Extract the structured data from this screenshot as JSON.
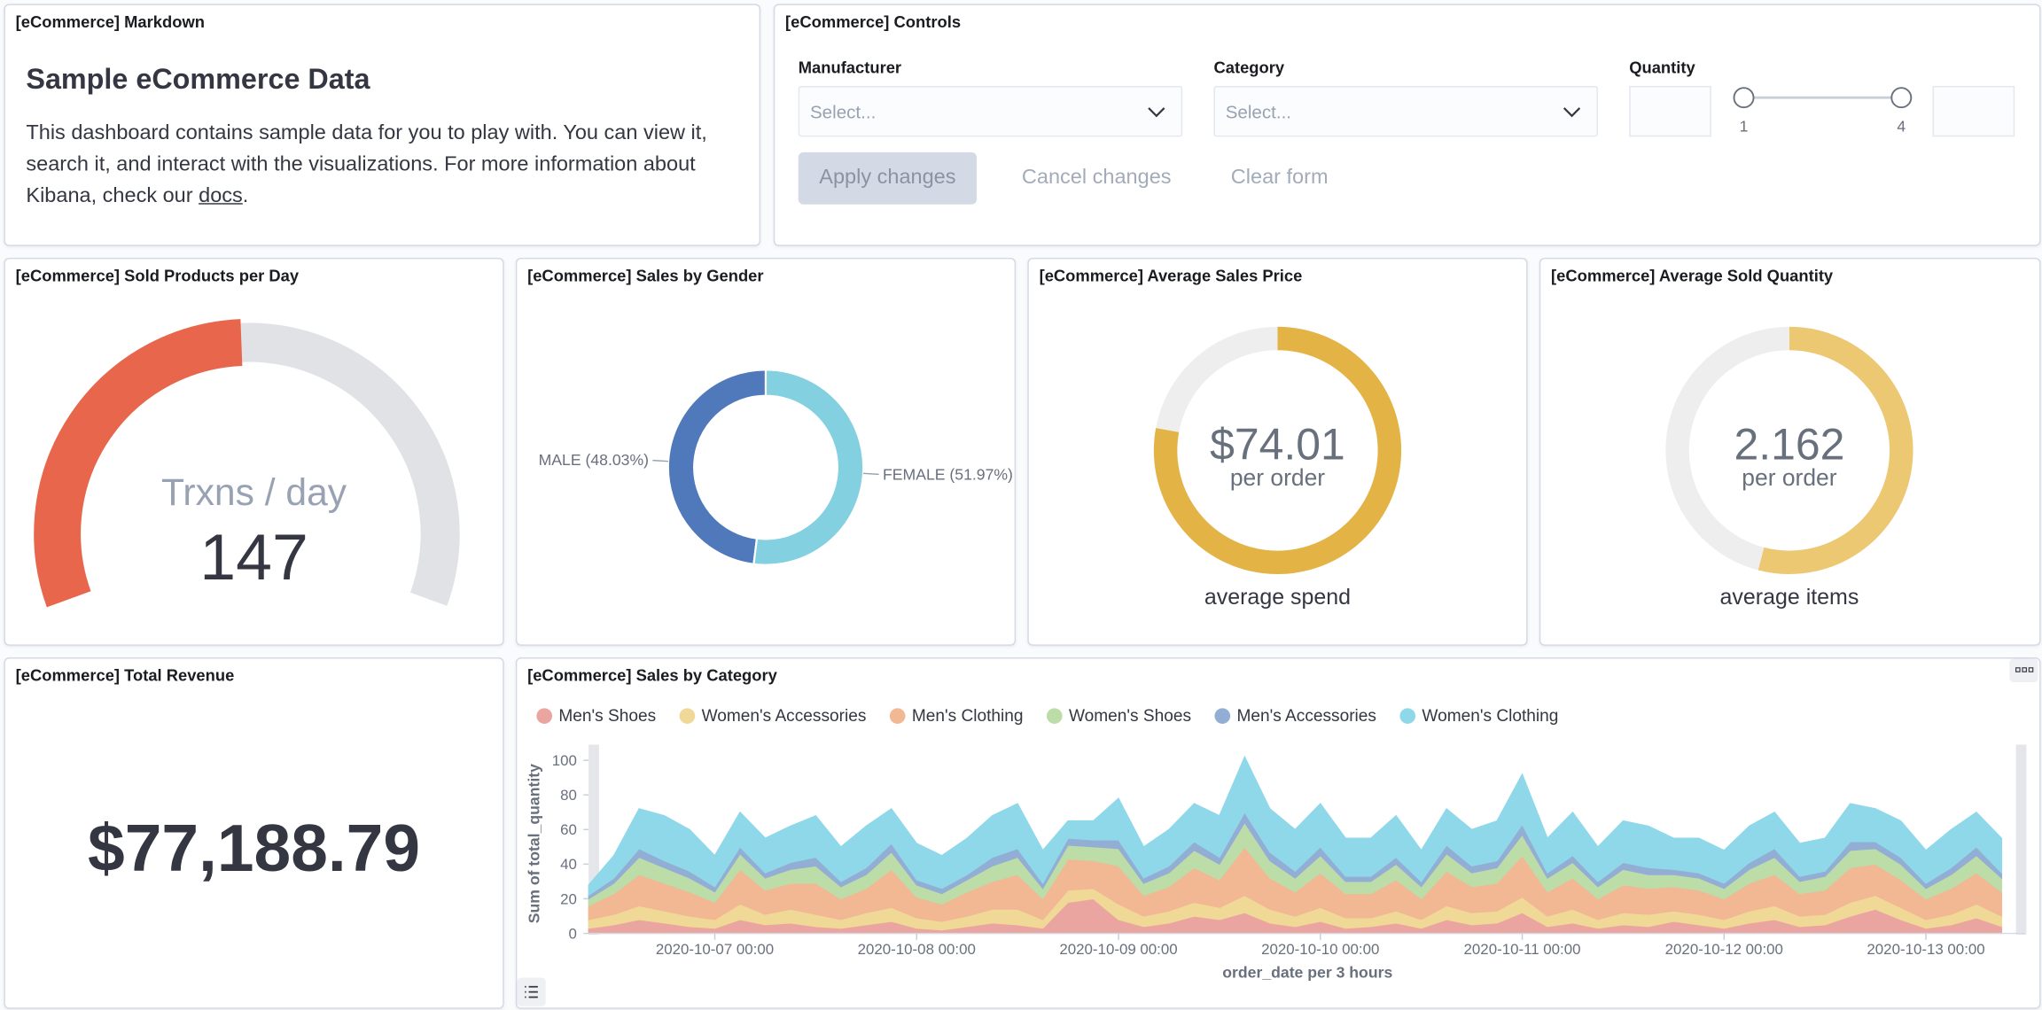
{
  "markdown": {
    "title": "[eCommerce] Markdown",
    "heading": "Sample eCommerce Data",
    "text_before": "This dashboard contains sample data for you to play with. You can view it, search it, and interact with the visualizations. For more information about Kibana, check our ",
    "link": "docs",
    "text_after": "."
  },
  "controls": {
    "title": "[eCommerce] Controls",
    "manufacturer": {
      "label": "Manufacturer",
      "placeholder": "Select..."
    },
    "category": {
      "label": "Category",
      "placeholder": "Select..."
    },
    "quantity": {
      "label": "Quantity",
      "min": 1,
      "max": 4
    },
    "buttons": [
      "Apply changes",
      "Cancel changes",
      "Clear form"
    ]
  },
  "chart_data": [
    {
      "type": "gauge",
      "title": "[eCommerce] Sold Products per Day",
      "label": "Trxns / day",
      "value": 147,
      "range": [
        0,
        300
      ],
      "colors": [
        "#e7664c",
        "#e0e2e6"
      ]
    },
    {
      "type": "pie",
      "title": "[eCommerce] Sales by Gender",
      "categories": [
        "MALE",
        "FEMALE"
      ],
      "values": [
        48.03,
        51.97
      ],
      "value_labels": [
        "MALE (48.03%)",
        "FEMALE (51.97%)"
      ],
      "colors": [
        "#5079bc",
        "#82d0e0"
      ]
    },
    {
      "type": "metric",
      "title": "[eCommerce] Average Sales Price",
      "value": 74.01,
      "value_label": "$74.01",
      "subtitle": "per order",
      "label": "average spend",
      "range": [
        0,
        95
      ],
      "color": "#e3b445"
    },
    {
      "type": "metric",
      "title": "[eCommerce] Average Sold Quantity",
      "value": 2.162,
      "subtitle": "per order",
      "label": "average items",
      "range": [
        0,
        4
      ],
      "color": "#ecc872"
    },
    {
      "type": "metric",
      "title": "[eCommerce] Total Revenue",
      "value": 77188.79,
      "value_label": "$77,188.79"
    },
    {
      "type": "area",
      "title": "[eCommerce] Sales by Category",
      "stacked": true,
      "x_label": "order_date per 3 hours",
      "y_label": "Sum of total_quantity",
      "x": [
        "2020-10-06 09:00",
        "2020-10-06 12:00",
        "2020-10-06 15:00",
        "2020-10-06 18:00",
        "2020-10-06 21:00",
        "2020-10-07 00:00",
        "2020-10-07 03:00",
        "2020-10-07 06:00",
        "2020-10-07 09:00",
        "2020-10-07 12:00",
        "2020-10-07 15:00",
        "2020-10-07 18:00",
        "2020-10-07 21:00",
        "2020-10-08 00:00",
        "2020-10-08 03:00",
        "2020-10-08 06:00",
        "2020-10-08 09:00",
        "2020-10-08 12:00",
        "2020-10-08 15:00",
        "2020-10-08 18:00",
        "2020-10-08 21:00",
        "2020-10-09 00:00",
        "2020-10-09 03:00",
        "2020-10-09 06:00",
        "2020-10-09 09:00",
        "2020-10-09 12:00",
        "2020-10-09 15:00",
        "2020-10-09 18:00",
        "2020-10-09 21:00",
        "2020-10-10 00:00",
        "2020-10-10 03:00",
        "2020-10-10 06:00",
        "2020-10-10 09:00",
        "2020-10-10 12:00",
        "2020-10-10 15:00",
        "2020-10-10 18:00",
        "2020-10-10 21:00",
        "2020-10-11 00:00",
        "2020-10-11 03:00",
        "2020-10-11 06:00",
        "2020-10-11 09:00",
        "2020-10-11 12:00",
        "2020-10-11 15:00",
        "2020-10-11 18:00",
        "2020-10-11 21:00",
        "2020-10-12 00:00",
        "2020-10-12 03:00",
        "2020-10-12 06:00",
        "2020-10-12 09:00",
        "2020-10-12 12:00",
        "2020-10-12 15:00",
        "2020-10-12 18:00",
        "2020-10-12 21:00",
        "2020-10-13 00:00",
        "2020-10-13 03:00",
        "2020-10-13 06:00",
        "2020-10-13 09:00"
      ],
      "xlim": [
        "2020-10-06 09:00",
        "2020-10-13 09:00"
      ],
      "xticks": [
        "2020-10-07 00:00",
        "2020-10-08 00:00",
        "2020-10-09 00:00",
        "2020-10-10 00:00",
        "2020-10-11 00:00",
        "2020-10-12 00:00",
        "2020-10-13 00:00"
      ],
      "ylim": [
        0,
        105
      ],
      "yticks": [
        0,
        20,
        40,
        60,
        80,
        100
      ],
      "series": [
        {
          "name": "Men's Shoes",
          "color": "#eba5a0",
          "values": [
            3,
            5,
            8,
            6,
            4,
            3,
            8,
            5,
            6,
            4,
            3,
            5,
            7,
            3,
            2,
            4,
            6,
            5,
            3,
            18,
            20,
            8,
            4,
            6,
            10,
            8,
            12,
            6,
            4,
            7,
            3,
            4,
            6,
            3,
            8,
            5,
            6,
            12,
            4,
            6,
            3,
            5,
            4,
            7,
            5,
            3,
            6,
            8,
            4,
            5,
            10,
            14,
            8,
            3,
            5,
            9,
            4
          ]
        },
        {
          "name": "Women's Accessories",
          "color": "#f0d896",
          "values": [
            5,
            6,
            8,
            7,
            6,
            5,
            9,
            6,
            8,
            7,
            5,
            7,
            8,
            6,
            5,
            6,
            8,
            9,
            5,
            7,
            6,
            9,
            6,
            7,
            8,
            7,
            10,
            8,
            6,
            8,
            6,
            5,
            7,
            5,
            8,
            7,
            7,
            9,
            6,
            8,
            5,
            7,
            7,
            6,
            6,
            5,
            7,
            8,
            6,
            6,
            8,
            8,
            7,
            5,
            6,
            8,
            6
          ]
        },
        {
          "name": "Men's Clothing",
          "color": "#f2b793",
          "values": [
            8,
            12,
            18,
            16,
            14,
            10,
            20,
            14,
            15,
            18,
            12,
            14,
            22,
            12,
            10,
            14,
            16,
            20,
            12,
            18,
            16,
            22,
            12,
            14,
            20,
            16,
            28,
            18,
            14,
            20,
            14,
            14,
            18,
            12,
            20,
            15,
            16,
            24,
            14,
            18,
            12,
            16,
            15,
            14,
            14,
            12,
            16,
            18,
            13,
            14,
            20,
            18,
            16,
            12,
            15,
            18,
            14
          ]
        },
        {
          "name": "Women's Shoes",
          "color": "#bcdca8",
          "values": [
            4,
            6,
            10,
            9,
            8,
            6,
            9,
            7,
            8,
            10,
            7,
            8,
            10,
            7,
            6,
            7,
            9,
            10,
            6,
            8,
            8,
            10,
            7,
            8,
            10,
            9,
            14,
            10,
            8,
            10,
            7,
            7,
            9,
            7,
            10,
            8,
            9,
            12,
            8,
            9,
            7,
            9,
            8,
            7,
            7,
            6,
            8,
            10,
            7,
            8,
            10,
            9,
            9,
            6,
            8,
            10,
            8
          ]
        },
        {
          "name": "Men's Accessories",
          "color": "#93aed4",
          "values": [
            2,
            3,
            5,
            4,
            4,
            3,
            4,
            3,
            4,
            5,
            3,
            4,
            5,
            3,
            3,
            3,
            5,
            5,
            3,
            4,
            4,
            5,
            3,
            4,
            5,
            4,
            6,
            5,
            4,
            5,
            3,
            3,
            4,
            3,
            5,
            4,
            4,
            6,
            3,
            4,
            3,
            4,
            4,
            3,
            3,
            3,
            4,
            5,
            3,
            3,
            5,
            4,
            4,
            3,
            4,
            5,
            3
          ]
        },
        {
          "name": "Women's Clothing",
          "color": "#8fd8ea",
          "values": [
            6,
            13,
            23,
            26,
            24,
            18,
            20,
            20,
            21,
            24,
            20,
            24,
            20,
            21,
            19,
            21,
            24,
            26,
            19,
            10,
            11,
            24,
            18,
            21,
            22,
            24,
            32,
            25,
            24,
            25,
            22,
            22,
            24,
            18,
            21,
            21,
            23,
            29,
            20,
            25,
            20,
            24,
            24,
            18,
            20,
            19,
            21,
            21,
            19,
            19,
            22,
            19,
            21,
            19,
            22,
            20,
            20
          ]
        }
      ]
    }
  ]
}
